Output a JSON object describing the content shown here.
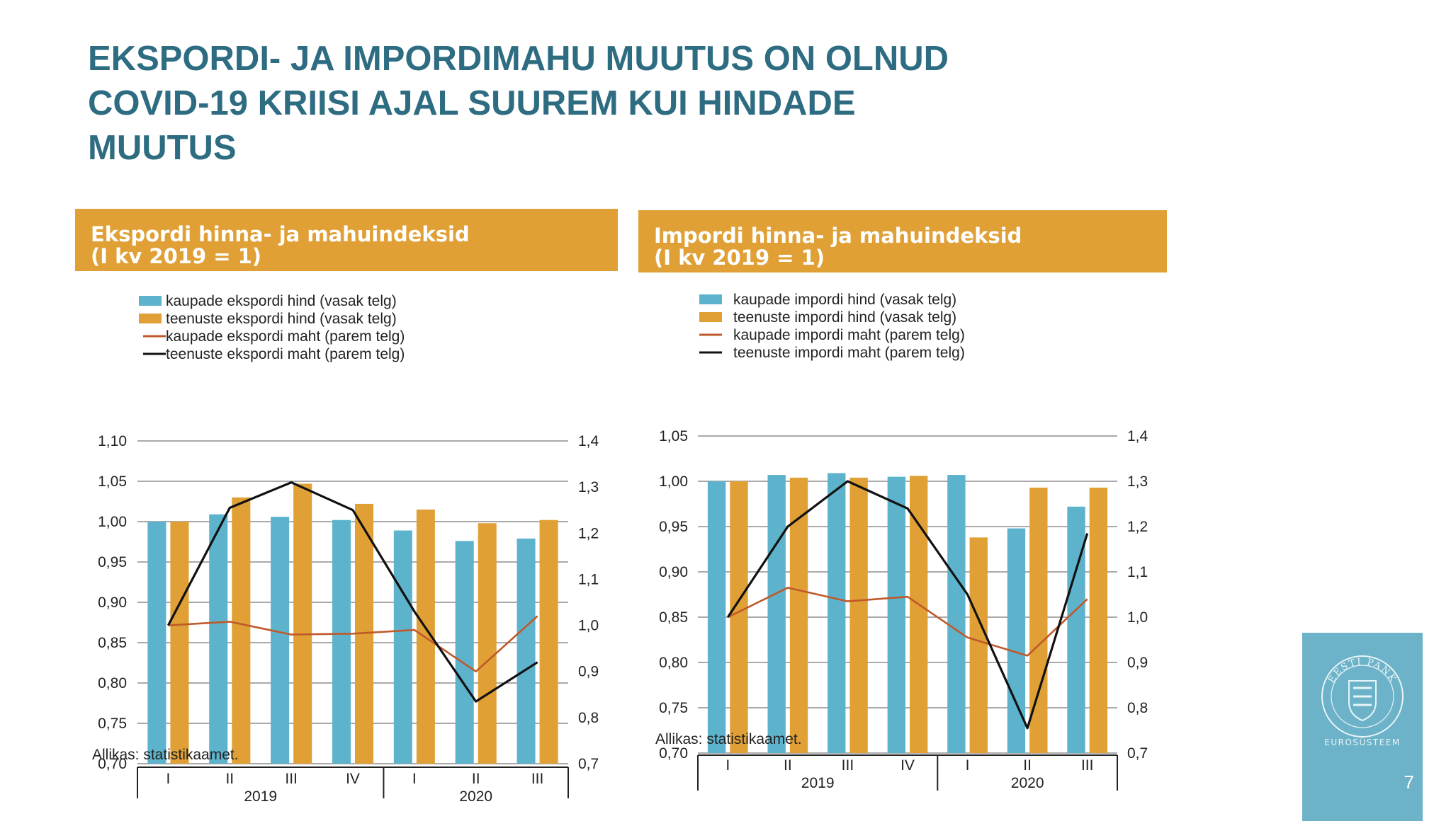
{
  "slide": {
    "title_lines": [
      "EKSPORDI- JA IMPORDIMAHU MUUTUS ON OLNUD",
      "COVID-19 KRIISI AJAL SUUREM KUI HINDADE",
      "MUUTUS"
    ],
    "page_number": "7",
    "logo": {
      "text": "EUROSÜSTEEM",
      "seal_text": "EESTI PANK"
    }
  },
  "colors": {
    "title": "#2e6c82",
    "header": "#e0a035",
    "goods_price": "#5eb3cc",
    "services_price": "#e0a035",
    "goods_volume": "#c0592a",
    "services_volume": "#111111",
    "logo_bg": "#6cb2c8"
  },
  "charts": [
    {
      "header": [
        "Ekspordi hinna- ja mahuindeksid",
        "(I kv 2019 = 1)"
      ],
      "source": "Allikas: statistikaamet.",
      "legend": [
        "kaupade ekspordi hind (vasak telg)",
        "teenuste ekspordi hind (vasak telg)",
        "kaupade ekspordi maht (parem telg)",
        "teenuste ekspordi maht (parem telg)"
      ],
      "y_left_ticks": [
        "1,10",
        "1,05",
        "1,00",
        "0,95",
        "0,90",
        "0,85",
        "0,80",
        "0,75",
        "0,70"
      ],
      "y_right_ticks": [
        "1,4",
        "1,3",
        "1,2",
        "1,1",
        "1,0",
        "0,9",
        "0,8",
        "0,7"
      ],
      "categories": [
        "I",
        "II",
        "III",
        "IV",
        "I",
        "II",
        "III"
      ],
      "years": [
        "2019",
        "2020"
      ]
    },
    {
      "header": [
        "Impordi hinna- ja mahuindeksid",
        "(I kv 2019 = 1)"
      ],
      "source": "Allikas: statistikaamet.",
      "legend": [
        "kaupade impordi hind (vasak telg)",
        "teenuste impordi hind (vasak telg)",
        "kaupade impordi maht (parem telg)",
        "teenuste impordi maht (parem telg)"
      ],
      "y_left_ticks": [
        "1,05",
        "1,00",
        "0,95",
        "0,90",
        "0,85",
        "0,80",
        "0,75",
        "0,70"
      ],
      "y_right_ticks": [
        "1,4",
        "1,3",
        "1,2",
        "1,1",
        "1,0",
        "0,9",
        "0,8",
        "0,7"
      ],
      "categories": [
        "I",
        "II",
        "III",
        "IV",
        "I",
        "II",
        "III"
      ],
      "years": [
        "2019",
        "2020"
      ]
    }
  ],
  "chart_data": [
    {
      "type": "bar",
      "categories": [
        "I 2019",
        "II 2019",
        "III 2019",
        "IV 2019",
        "I 2020",
        "II 2020",
        "III 2020"
      ],
      "ylim_left": [
        0.7,
        1.1
      ],
      "ylim_right": [
        0.7,
        1.4
      ],
      "series": [
        {
          "name": "kaupade ekspordi hind (vasak telg)",
          "kind": "bar",
          "axis": "left",
          "values": [
            1.0,
            1.009,
            1.006,
            1.002,
            0.989,
            0.976,
            0.979
          ]
        },
        {
          "name": "teenuste ekspordi hind (vasak telg)",
          "kind": "bar",
          "axis": "left",
          "values": [
            1.0,
            1.03,
            1.047,
            1.022,
            1.015,
            0.998,
            1.002
          ]
        },
        {
          "name": "kaupade ekspordi maht (parem telg)",
          "kind": "line",
          "axis": "right",
          "values": [
            1.0,
            1.008,
            0.98,
            0.982,
            0.99,
            0.9,
            1.02
          ]
        },
        {
          "name": "teenuste ekspordi maht (parem telg)",
          "kind": "line",
          "axis": "right",
          "values": [
            1.0,
            1.255,
            1.31,
            1.25,
            1.03,
            0.835,
            0.92
          ]
        }
      ]
    },
    {
      "type": "bar",
      "categories": [
        "I 2019",
        "II 2019",
        "III 2019",
        "IV 2019",
        "I 2020",
        "II 2020",
        "III 2020"
      ],
      "ylim_left": [
        0.7,
        1.05
      ],
      "ylim_right": [
        0.7,
        1.4
      ],
      "series": [
        {
          "name": "kaupade impordi hind (vasak telg)",
          "kind": "bar",
          "axis": "left",
          "values": [
            1.0,
            1.007,
            1.009,
            1.005,
            1.007,
            0.948,
            0.972
          ]
        },
        {
          "name": "teenuste impordi hind (vasak telg)",
          "kind": "bar",
          "axis": "left",
          "values": [
            1.0,
            1.004,
            1.004,
            1.006,
            0.938,
            0.993,
            0.993
          ]
        },
        {
          "name": "kaupade impordi maht (parem telg)",
          "kind": "line",
          "axis": "right",
          "values": [
            1.0,
            1.065,
            1.035,
            1.045,
            0.955,
            0.915,
            1.04
          ]
        },
        {
          "name": "teenuste impordi maht (parem telg)",
          "kind": "line",
          "axis": "right",
          "values": [
            1.0,
            1.2,
            1.3,
            1.24,
            1.05,
            0.755,
            1.185
          ]
        }
      ]
    }
  ]
}
